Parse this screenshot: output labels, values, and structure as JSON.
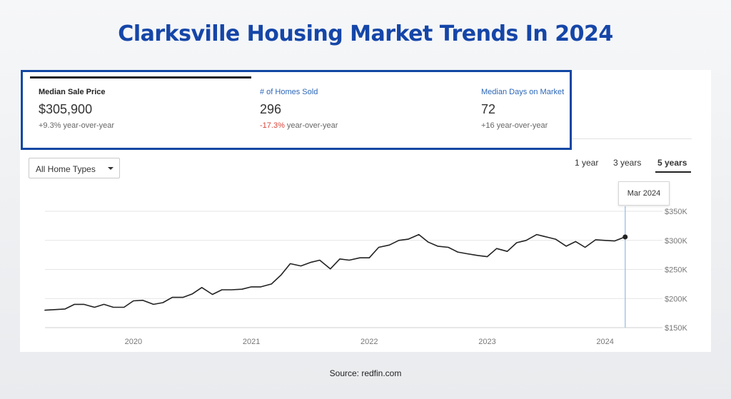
{
  "title": "Clarksville Housing Market Trends In 2024",
  "metrics": [
    {
      "label": "Median Sale Price",
      "value": "$305,900",
      "change_prefix": "",
      "change": "+9.3%",
      "change_suffix": " year-over-year"
    },
    {
      "label": "# of Homes Sold",
      "value": "296",
      "change_prefix": "",
      "change": "-17.3%",
      "change_suffix": " year-over-year"
    },
    {
      "label": "Median Days on Market",
      "value": "72",
      "change_prefix": "",
      "change": "+16",
      "change_suffix": " year-over-year"
    }
  ],
  "filter": {
    "selected": "All Home Types"
  },
  "ranges": {
    "one": "1 year",
    "three": "3 years",
    "five": "5 years",
    "active": "5 years"
  },
  "tooltip": {
    "label": "Mar 2024"
  },
  "source": "Source: redfin.com",
  "colors": {
    "title": "#1546a8",
    "highlight_border": "#1247a3",
    "negative": "#d9453b",
    "line": "#222222",
    "cursor": "#a9c6e6"
  },
  "chart_data": {
    "type": "line",
    "series": [
      {
        "x": [
          2019.25,
          2019.42,
          2019.5,
          2019.58,
          2019.67,
          2019.75,
          2019.83,
          2019.92,
          2020.0,
          2020.08,
          2020.17,
          2020.25,
          2020.33,
          2020.42,
          2020.5,
          2020.58,
          2020.67,
          2020.75,
          2020.83,
          2020.92,
          2021.0,
          2021.08,
          2021.17,
          2021.25,
          2021.33,
          2021.42,
          2021.5,
          2021.58,
          2021.67,
          2021.75,
          2021.83,
          2021.92,
          2022.0,
          2022.08,
          2022.17,
          2022.25,
          2022.33,
          2022.42,
          2022.5,
          2022.58,
          2022.67,
          2022.75,
          2022.83,
          2022.92,
          2023.0,
          2023.08,
          2023.17,
          2023.25,
          2023.33,
          2023.42,
          2023.5,
          2023.58,
          2023.67,
          2023.75,
          2023.83,
          2023.92,
          2024.0,
          2024.08,
          2024.17
        ],
        "values": [
          180000,
          182000,
          190000,
          190000,
          185000,
          190000,
          185000,
          185000,
          196000,
          197000,
          190000,
          193000,
          202000,
          202000,
          208000,
          219000,
          207000,
          215000,
          215000,
          216000,
          220000,
          220000,
          225000,
          240000,
          260000,
          256000,
          262000,
          266000,
          251000,
          268000,
          266000,
          270000,
          270000,
          288000,
          292000,
          300000,
          302000,
          310000,
          297000,
          290000,
          288000,
          280000,
          277000,
          274000,
          272000,
          286000,
          281000,
          296000,
          300000,
          310000,
          306000,
          302000,
          290000,
          298000,
          288000,
          301000,
          300000,
          299000,
          305900
        ]
      }
    ],
    "xticks": [
      "2020",
      "2021",
      "2022",
      "2023",
      "2024"
    ],
    "yticks": [
      "$150K",
      "$200K",
      "$250K",
      "$300K",
      "$350K"
    ],
    "ylim": [
      150000,
      350000
    ],
    "xlim": [
      2019.25,
      2024.45
    ],
    "grid": true,
    "highlight_x": 2024.17
  }
}
